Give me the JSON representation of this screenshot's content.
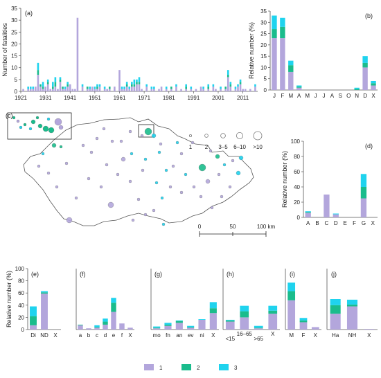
{
  "colors": {
    "s1": "#b3a6dc",
    "s2": "#1abc8c",
    "s3": "#1fd3ee",
    "outline": "#555555"
  },
  "legend": {
    "series": [
      "1",
      "2",
      "3"
    ],
    "size_labels": [
      "1",
      "2",
      "3–5",
      "6–10",
      ">10"
    ]
  },
  "map": {
    "label": "(c)",
    "scale": {
      "ticks": [
        "0",
        "50",
        "100 km"
      ]
    }
  },
  "chart_data": [
    {
      "id": "a",
      "label": "(a)",
      "type": "bar",
      "stacked": true,
      "ylabel": "Number of fatalities",
      "ylim": [
        0,
        35
      ],
      "yticks": [
        0,
        5,
        10,
        15,
        20,
        25,
        30,
        35
      ],
      "xticks": [
        "1921",
        "1931",
        "1941",
        "1951",
        "1961",
        "1971",
        "1981",
        "1991",
        "2001",
        "2011"
      ],
      "x_start": 1921,
      "x_end": 2017,
      "bars": [
        {
          "x": 1922,
          "v": [
            1,
            0,
            0
          ]
        },
        {
          "x": 1924,
          "v": [
            1,
            0,
            1
          ]
        },
        {
          "x": 1925,
          "v": [
            1,
            0,
            1
          ]
        },
        {
          "x": 1926,
          "v": [
            1,
            0,
            1
          ]
        },
        {
          "x": 1927,
          "v": [
            2,
            0,
            0
          ]
        },
        {
          "x": 1928,
          "v": [
            7,
            2,
            3
          ]
        },
        {
          "x": 1929,
          "v": [
            2,
            1,
            0
          ]
        },
        {
          "x": 1930,
          "v": [
            1,
            1,
            2
          ]
        },
        {
          "x": 1931,
          "v": [
            2,
            0,
            0
          ]
        },
        {
          "x": 1932,
          "v": [
            3,
            1,
            1
          ]
        },
        {
          "x": 1933,
          "v": [
            1,
            0,
            0
          ]
        },
        {
          "x": 1934,
          "v": [
            1,
            1,
            2
          ]
        },
        {
          "x": 1935,
          "v": [
            2,
            2,
            2
          ]
        },
        {
          "x": 1936,
          "v": [
            1,
            0,
            0
          ]
        },
        {
          "x": 1937,
          "v": [
            4,
            1,
            1
          ]
        },
        {
          "x": 1938,
          "v": [
            1,
            1,
            0
          ]
        },
        {
          "x": 1939,
          "v": [
            1,
            0,
            1
          ]
        },
        {
          "x": 1940,
          "v": [
            2,
            1,
            1
          ]
        },
        {
          "x": 1941,
          "v": [
            3,
            0,
            0
          ]
        },
        {
          "x": 1942,
          "v": [
            1,
            0,
            0
          ]
        },
        {
          "x": 1943,
          "v": [
            1,
            0,
            0
          ]
        },
        {
          "x": 1944,
          "v": [
            31,
            0,
            0
          ]
        },
        {
          "x": 1946,
          "v": [
            2,
            0,
            1
          ]
        },
        {
          "x": 1948,
          "v": [
            1,
            1,
            0
          ]
        },
        {
          "x": 1949,
          "v": [
            1,
            0,
            1
          ]
        },
        {
          "x": 1950,
          "v": [
            2,
            0,
            0
          ]
        },
        {
          "x": 1951,
          "v": [
            1,
            0,
            1
          ]
        },
        {
          "x": 1952,
          "v": [
            1,
            1,
            1
          ]
        },
        {
          "x": 1953,
          "v": [
            2,
            0,
            1
          ]
        },
        {
          "x": 1955,
          "v": [
            1,
            0,
            1
          ]
        },
        {
          "x": 1956,
          "v": [
            1,
            0,
            0
          ]
        },
        {
          "x": 1957,
          "v": [
            1,
            1,
            0
          ]
        },
        {
          "x": 1959,
          "v": [
            2,
            0,
            0
          ]
        },
        {
          "x": 1961,
          "v": [
            9,
            0,
            0
          ]
        },
        {
          "x": 1962,
          "v": [
            1,
            0,
            1
          ]
        },
        {
          "x": 1963,
          "v": [
            1,
            0,
            1
          ]
        },
        {
          "x": 1964,
          "v": [
            2,
            1,
            1
          ]
        },
        {
          "x": 1965,
          "v": [
            1,
            0,
            1
          ]
        },
        {
          "x": 1966,
          "v": [
            2,
            1,
            1
          ]
        },
        {
          "x": 1967,
          "v": [
            2,
            1,
            2
          ]
        },
        {
          "x": 1968,
          "v": [
            3,
            1,
            1
          ]
        },
        {
          "x": 1969,
          "v": [
            3,
            1,
            2
          ]
        },
        {
          "x": 1970,
          "v": [
            1,
            0,
            0
          ]
        },
        {
          "x": 1972,
          "v": [
            2,
            0,
            1
          ]
        },
        {
          "x": 1974,
          "v": [
            1,
            0,
            1
          ]
        },
        {
          "x": 1975,
          "v": [
            1,
            0,
            1
          ]
        },
        {
          "x": 1977,
          "v": [
            1,
            0,
            0
          ]
        },
        {
          "x": 1978,
          "v": [
            2,
            0,
            0
          ]
        },
        {
          "x": 1980,
          "v": [
            1,
            0,
            1
          ]
        },
        {
          "x": 1982,
          "v": [
            1,
            1,
            0
          ]
        },
        {
          "x": 1984,
          "v": [
            2,
            0,
            1
          ]
        },
        {
          "x": 1986,
          "v": [
            1,
            0,
            0
          ]
        },
        {
          "x": 1988,
          "v": [
            1,
            1,
            1
          ]
        },
        {
          "x": 1990,
          "v": [
            1,
            0,
            1
          ]
        },
        {
          "x": 1992,
          "v": [
            1,
            0,
            0
          ]
        },
        {
          "x": 1994,
          "v": [
            2,
            0,
            0
          ]
        },
        {
          "x": 1995,
          "v": [
            1,
            0,
            1
          ]
        },
        {
          "x": 1997,
          "v": [
            1,
            1,
            1
          ]
        },
        {
          "x": 1999,
          "v": [
            2,
            0,
            1
          ]
        },
        {
          "x": 2000,
          "v": [
            1,
            0,
            0
          ]
        },
        {
          "x": 2002,
          "v": [
            1,
            0,
            1
          ]
        },
        {
          "x": 2004,
          "v": [
            1,
            1,
            0
          ]
        },
        {
          "x": 2005,
          "v": [
            6,
            1,
            2
          ]
        },
        {
          "x": 2006,
          "v": [
            2,
            1,
            1
          ]
        },
        {
          "x": 2008,
          "v": [
            1,
            0,
            1
          ]
        },
        {
          "x": 2009,
          "v": [
            2,
            0,
            1
          ]
        },
        {
          "x": 2010,
          "v": [
            3,
            1,
            1
          ]
        },
        {
          "x": 2011,
          "v": [
            1,
            0,
            0
          ]
        },
        {
          "x": 2012,
          "v": [
            1,
            0,
            0
          ]
        },
        {
          "x": 2014,
          "v": [
            1,
            0,
            0
          ]
        },
        {
          "x": 2016,
          "v": [
            2,
            0,
            1
          ]
        }
      ]
    },
    {
      "id": "b",
      "label": "(b)",
      "type": "bar",
      "stacked": true,
      "ylabel": "Relative number (%)",
      "ylim": [
        0,
        35
      ],
      "yticks": [
        0,
        5,
        10,
        15,
        20,
        25,
        30,
        35
      ],
      "categories": [
        "J",
        "F",
        "M",
        "A",
        "M",
        "J",
        "J",
        "A",
        "S",
        "O",
        "N",
        "D",
        "X"
      ],
      "series": [
        {
          "name": "1",
          "values": [
            23,
            23,
            8,
            1,
            0,
            0,
            0,
            0,
            0,
            0,
            0,
            10,
            2
          ]
        },
        {
          "name": "2",
          "values": [
            4,
            5,
            3,
            0.5,
            0,
            0,
            0,
            0,
            0,
            0,
            0.5,
            2,
            1
          ]
        },
        {
          "name": "3",
          "values": [
            6,
            4,
            2,
            0.5,
            0,
            0,
            0,
            0,
            0,
            0,
            0.5,
            3,
            1
          ]
        }
      ]
    },
    {
      "id": "d",
      "label": "(d)",
      "type": "bar",
      "stacked": true,
      "ylabel": "Relative number (%)",
      "ylim": [
        0,
        100
      ],
      "yticks": [
        0,
        20,
        40,
        60,
        80,
        100
      ],
      "categories": [
        "A",
        "B",
        "C",
        "D",
        "E",
        "F",
        "G",
        "X"
      ],
      "series": [
        {
          "name": "1",
          "values": [
            6,
            0,
            30,
            4,
            0,
            0,
            25,
            0
          ]
        },
        {
          "name": "2",
          "values": [
            1,
            0,
            0,
            0,
            0,
            0,
            15,
            0
          ]
        },
        {
          "name": "3",
          "values": [
            1,
            0,
            0,
            1,
            0,
            0,
            17,
            0
          ]
        }
      ]
    },
    {
      "id": "e",
      "label": "(e)",
      "type": "bar",
      "stacked": true,
      "ylabel": "Relative number (%)",
      "ylim": [
        0,
        100
      ],
      "yticks": [
        0,
        20,
        40,
        60,
        80,
        100
      ],
      "categories": [
        "Di",
        "ND",
        "X"
      ],
      "series": [
        {
          "name": "1",
          "values": [
            7,
            59,
            0
          ]
        },
        {
          "name": "2",
          "values": [
            15,
            2,
            0
          ]
        },
        {
          "name": "3",
          "values": [
            16,
            2,
            0
          ]
        }
      ]
    },
    {
      "id": "f",
      "label": "(f)",
      "type": "bar",
      "stacked": true,
      "ylim": [
        0,
        100
      ],
      "categories": [
        "a",
        "b",
        "c",
        "d",
        "e",
        "f",
        "X"
      ],
      "series": [
        {
          "name": "1",
          "values": [
            7,
            2,
            3,
            8,
            29,
            10,
            3
          ]
        },
        {
          "name": "2",
          "values": [
            1,
            0,
            1,
            5,
            15,
            0,
            0
          ]
        },
        {
          "name": "3",
          "values": [
            0,
            0,
            3,
            5,
            8,
            0,
            0
          ]
        }
      ]
    },
    {
      "id": "g",
      "label": "(g)",
      "type": "bar",
      "stacked": true,
      "ylim": [
        0,
        100
      ],
      "categories": [
        "mo",
        "fn",
        "an",
        "ev",
        "ni",
        "X"
      ],
      "series": [
        {
          "name": "1",
          "values": [
            2,
            6,
            11,
            3,
            16,
            27
          ]
        },
        {
          "name": "2",
          "values": [
            1,
            2,
            3,
            1,
            0,
            8
          ]
        },
        {
          "name": "3",
          "values": [
            2,
            3,
            1,
            2,
            1,
            10
          ]
        }
      ]
    },
    {
      "id": "h",
      "label": "(h)",
      "type": "bar",
      "stacked": true,
      "ylim": [
        0,
        100
      ],
      "categories": [
        "<15",
        "16–65",
        ">65",
        "X"
      ],
      "series": [
        {
          "name": "1",
          "values": [
            13,
            20,
            2,
            26
          ]
        },
        {
          "name": "2",
          "values": [
            2,
            10,
            1,
            5
          ]
        },
        {
          "name": "3",
          "values": [
            1,
            9,
            3,
            8
          ]
        }
      ]
    },
    {
      "id": "i",
      "label": "(i)",
      "type": "bar",
      "stacked": true,
      "ylim": [
        0,
        100
      ],
      "categories": [
        "M",
        "F",
        "X"
      ],
      "series": [
        {
          "name": "1",
          "values": [
            48,
            12,
            4
          ]
        },
        {
          "name": "2",
          "values": [
            15,
            3,
            0
          ]
        },
        {
          "name": "3",
          "values": [
            14,
            4,
            0
          ]
        }
      ]
    },
    {
      "id": "j",
      "label": "(j)",
      "type": "bar",
      "stacked": true,
      "ylim": [
        0,
        100
      ],
      "categories": [
        "Ha",
        "NH",
        "X"
      ],
      "series": [
        {
          "name": "1",
          "values": [
            26,
            38,
            1
          ]
        },
        {
          "name": "2",
          "values": [
            14,
            3,
            0
          ]
        },
        {
          "name": "3",
          "values": [
            10,
            8,
            0
          ]
        }
      ]
    }
  ]
}
